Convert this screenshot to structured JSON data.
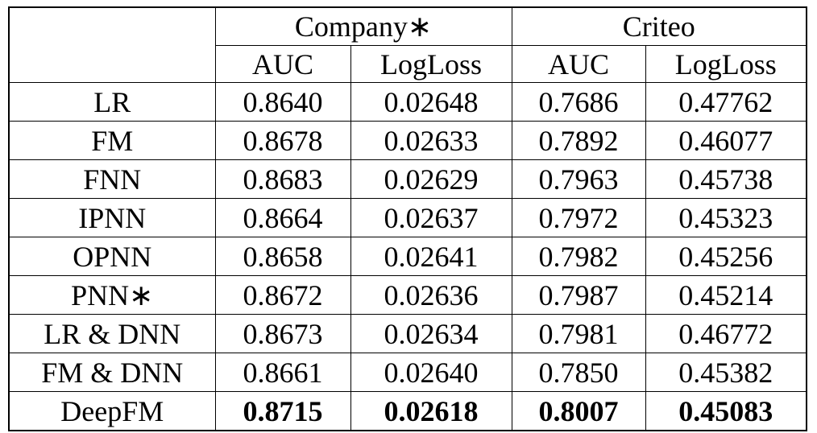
{
  "table": {
    "groups": [
      "Company∗",
      "Criteo"
    ],
    "metrics": [
      "AUC",
      "LogLoss",
      "AUC",
      "LogLoss"
    ],
    "rows": [
      {
        "model": "LR",
        "values": [
          "0.8640",
          "0.02648",
          "0.7686",
          "0.47762"
        ]
      },
      {
        "model": "FM",
        "values": [
          "0.8678",
          "0.02633",
          "0.7892",
          "0.46077"
        ]
      },
      {
        "model": "FNN",
        "values": [
          "0.8683",
          "0.02629",
          "0.7963",
          "0.45738"
        ]
      },
      {
        "model": "IPNN",
        "values": [
          "0.8664",
          "0.02637",
          "0.7972",
          "0.45323"
        ]
      },
      {
        "model": "OPNN",
        "values": [
          "0.8658",
          "0.02641",
          "0.7982",
          "0.45256"
        ]
      },
      {
        "model": "PNN∗",
        "values": [
          "0.8672",
          "0.02636",
          "0.7987",
          "0.45214"
        ]
      },
      {
        "model": "LR & DNN",
        "values": [
          "0.8673",
          "0.02634",
          "0.7981",
          "0.46772"
        ]
      },
      {
        "model": "FM & DNN",
        "values": [
          "0.8661",
          "0.02640",
          "0.7850",
          "0.45382"
        ]
      },
      {
        "model": "DeepFM",
        "values": [
          "0.8715",
          "0.02618",
          "0.8007",
          "0.45083"
        ]
      }
    ]
  }
}
